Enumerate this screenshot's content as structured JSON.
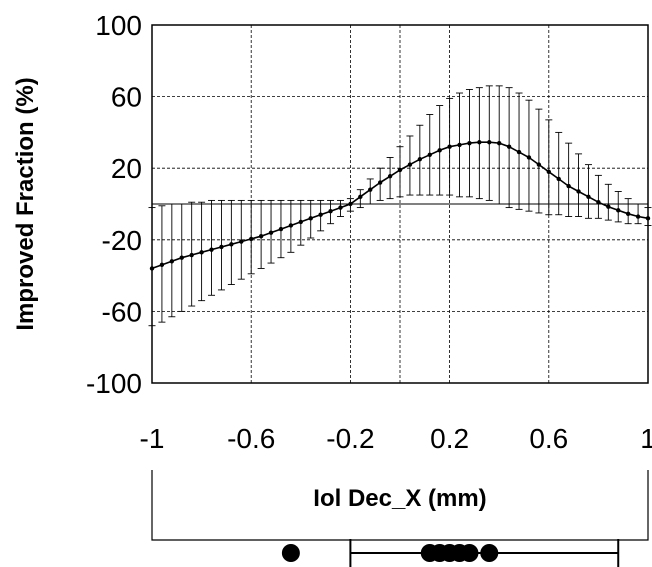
{
  "chart_data": {
    "type": "line",
    "title": "",
    "xlabel": "Iol Dec_X (mm)",
    "ylabel": "Improved Fraction (%)",
    "xlim": [
      -1,
      1
    ],
    "ylim": [
      -100,
      100
    ],
    "x_ticks": [
      "-1",
      "-0.6",
      "-0.2",
      "0.2",
      "0.6",
      "1"
    ],
    "y_ticks": [
      "100",
      "60",
      "20",
      "-20",
      "-60",
      "-100"
    ],
    "grid": true,
    "grid_style": "dashed",
    "reference_line_y": 0,
    "x": [
      -1.0,
      -0.96,
      -0.92,
      -0.88,
      -0.84,
      -0.8,
      -0.76,
      -0.72,
      -0.68,
      -0.64,
      -0.6,
      -0.56,
      -0.52,
      -0.48,
      -0.44,
      -0.4,
      -0.36,
      -0.32,
      -0.28,
      -0.24,
      -0.2,
      -0.16,
      -0.12,
      -0.08,
      -0.04,
      0.0,
      0.04,
      0.08,
      0.12,
      0.16,
      0.2,
      0.24,
      0.28,
      0.32,
      0.36,
      0.4,
      0.44,
      0.48,
      0.52,
      0.56,
      0.6,
      0.64,
      0.68,
      0.72,
      0.76,
      0.8,
      0.84,
      0.88,
      0.92,
      0.96,
      1.0
    ],
    "series": [
      {
        "y": [
          -36,
          -34,
          -32,
          -30,
          -28.5,
          -27,
          -25.5,
          -24,
          -22.5,
          -21,
          -19.5,
          -18,
          -16,
          -14,
          -12,
          -10,
          -8,
          -6,
          -4,
          -2,
          0,
          4,
          8,
          12,
          15.5,
          19,
          22,
          25,
          27.5,
          30,
          32,
          33,
          34,
          34.5,
          34.5,
          34,
          32,
          29,
          26,
          22,
          18,
          14,
          10,
          7,
          4,
          1,
          -1.5,
          -3.5,
          -5.5,
          -7,
          -8
        ],
        "y_low": [
          -68,
          -66,
          -63,
          -60,
          -57,
          -54,
          -51,
          -48,
          -45,
          -42,
          -39,
          -36,
          -33,
          -30,
          -27,
          -23,
          -19,
          -15,
          -11,
          -7,
          -4,
          -2,
          0,
          2,
          3,
          4,
          5,
          5,
          5,
          5,
          5,
          4,
          4,
          3,
          2,
          0,
          -2,
          -3,
          -4,
          -5,
          -6,
          -6,
          -7,
          -7,
          -8,
          -8,
          -9,
          -10,
          -11,
          -11,
          -12
        ],
        "y_high": [
          -2,
          -1,
          0,
          0,
          1,
          1,
          2,
          2,
          2,
          2,
          2,
          2,
          2,
          2,
          2,
          2,
          2,
          2,
          2,
          2,
          3,
          8,
          14,
          20,
          26,
          32,
          38,
          44,
          50,
          55,
          59,
          62,
          64,
          65,
          66,
          66,
          65,
          62,
          58,
          53,
          47,
          40,
          34,
          28,
          22,
          16,
          11,
          7,
          3,
          0,
          -2
        ]
      }
    ],
    "strip_points": [
      -0.44,
      0.12,
      0.16,
      0.2,
      0.24,
      0.28,
      0.36
    ],
    "strip_range": [
      -0.2,
      0.88
    ]
  }
}
